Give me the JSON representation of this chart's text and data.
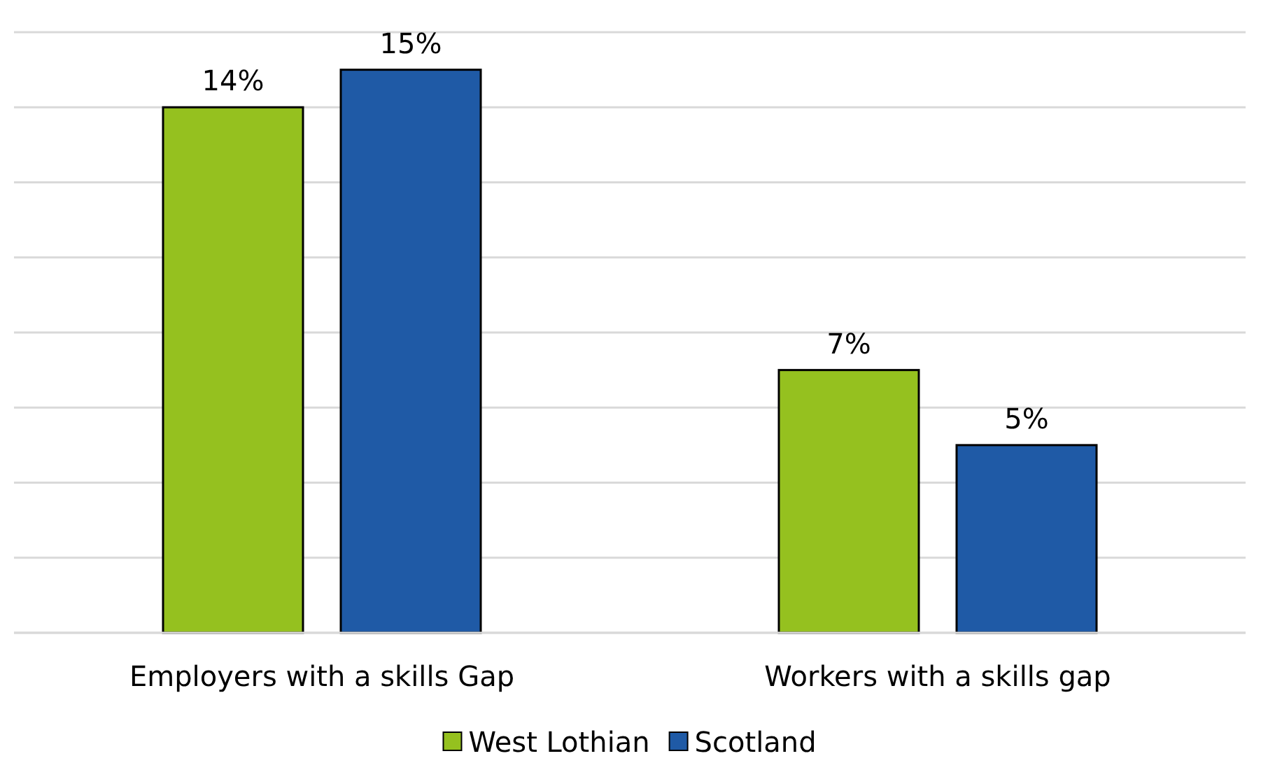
{
  "chart_data": {
    "type": "bar",
    "categories": [
      "Employers with a skills Gap",
      "Workers with a skills gap"
    ],
    "series": [
      {
        "name": "West Lothian",
        "color": "#95c11f",
        "values": [
          14,
          7
        ],
        "value_labels": [
          "14%",
          "7%"
        ]
      },
      {
        "name": "Scotland",
        "color": "#1f5aa6",
        "values": [
          15,
          5
        ],
        "value_labels": [
          "15%",
          "5%"
        ]
      }
    ],
    "ylim": [
      0,
      16
    ],
    "yticks": [
      {
        "value": 0,
        "label": null
      },
      {
        "value": 2,
        "label": null
      },
      {
        "value": 4,
        "label": null
      },
      {
        "value": 6,
        "label": null
      },
      {
        "value": 8,
        "label": null
      },
      {
        "value": 10,
        "label": null
      },
      {
        "value": 12,
        "label": null
      },
      {
        "value": 14,
        "label": null
      },
      {
        "value": 16,
        "label": null
      }
    ],
    "tick_labels": "x",
    "grid": "y",
    "legend": "bottom"
  }
}
